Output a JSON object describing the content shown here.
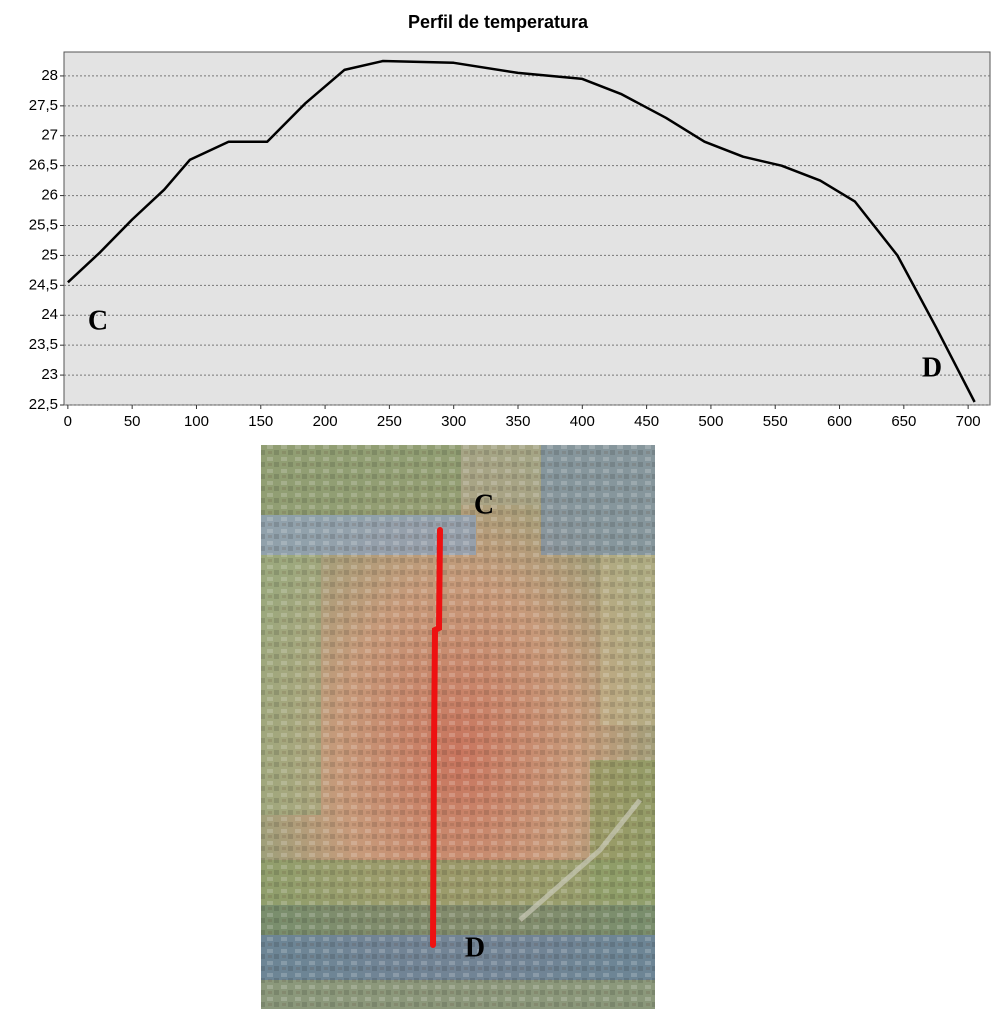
{
  "chart_data": {
    "type": "line",
    "title": "Perfil de temperatura",
    "x": [
      0,
      25,
      50,
      75,
      95,
      125,
      155,
      185,
      215,
      245,
      300,
      350,
      400,
      430,
      465,
      495,
      525,
      555,
      585,
      612,
      645,
      675,
      705
    ],
    "series": [
      {
        "color": "#000000",
        "values": [
          24.55,
          25.05,
          25.6,
          26.1,
          26.6,
          26.9,
          26.9,
          27.55,
          28.1,
          28.25,
          28.22,
          28.05,
          27.95,
          27.7,
          27.3,
          26.9,
          26.65,
          26.5,
          26.25,
          25.9,
          25.0,
          23.8,
          22.55
        ]
      }
    ],
    "xlim": [
      -3,
      717
    ],
    "xticks": [
      0,
      50,
      100,
      150,
      200,
      250,
      300,
      350,
      400,
      450,
      500,
      550,
      600,
      650,
      700
    ],
    "ylim": [
      22.5,
      28.4
    ],
    "yticks": [
      {
        "value": 22.5,
        "label": "22,5"
      },
      23,
      {
        "value": 23.5,
        "label": "23,5"
      },
      24,
      {
        "value": 24.5,
        "label": "24,5"
      },
      25,
      {
        "value": 25.5,
        "label": "25,5"
      },
      26,
      {
        "value": 26.5,
        "label": "26,5"
      },
      27,
      {
        "value": 27.5,
        "label": "27,5"
      },
      28
    ],
    "grid": true,
    "background": "#e3e3e3",
    "annotations": [
      "C",
      "D"
    ]
  },
  "map": {
    "labels": [
      "C",
      "D"
    ],
    "profile_color": "#ee1111"
  }
}
